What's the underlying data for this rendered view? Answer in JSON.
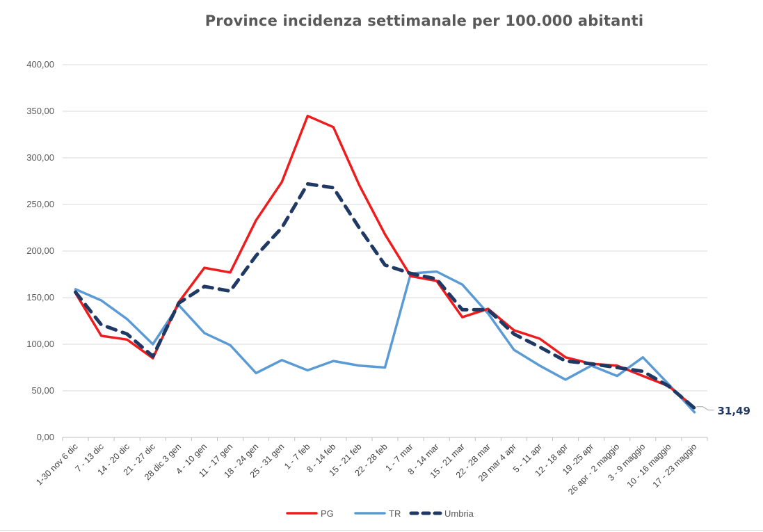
{
  "chart_data": {
    "type": "line",
    "title": "Province incidenza settimanale per 100.000 abitanti",
    "categories": [
      "1-30 nov 6 dic",
      "7 - 13 dic",
      "14 - 20 dic",
      "21 - 27 dic",
      "28 dic 3 gen",
      "4 - 10 gen",
      "11 - 17 gen",
      "18 - 24 gen",
      "25 - 31 gen",
      "1 - 7 feb",
      "8 - 14 feb",
      "15 - 21 feb",
      "22 - 28 feb",
      "1 - 7 mar",
      "8 - 14 mar",
      "15 - 21 mar",
      "22 - 28 mar",
      "29 mar 4 apr",
      "5 - 11 apr",
      "12 - 18 apr",
      "19 -25 apr",
      "26 apr - 2 maggio",
      "3 - 9 maggio",
      "10 - 16 maggio",
      "17 - 23 maggio"
    ],
    "series": [
      {
        "name": "PG",
        "color": "#ee1c1c",
        "style": "solid",
        "values": [
          155,
          109,
          105,
          85,
          145,
          182,
          177,
          233,
          274,
          345,
          333,
          271,
          218,
          173,
          168,
          129,
          138,
          115,
          106,
          86,
          79,
          77,
          66,
          55,
          32
        ]
      },
      {
        "name": "TR",
        "color": "#5b9bd5",
        "style": "solid",
        "values": [
          159,
          147,
          127,
          100,
          142,
          112,
          99,
          69,
          83,
          72,
          82,
          77,
          75,
          176,
          178,
          164,
          133,
          94,
          77,
          62,
          77,
          66,
          86,
          57,
          27
        ]
      },
      {
        "name": "Umbria",
        "color": "#1f3864",
        "style": "dashed",
        "values": [
          156,
          121,
          111,
          87,
          144,
          162,
          157,
          195,
          225,
          272,
          268,
          225,
          185,
          176,
          170,
          137,
          137,
          111,
          97,
          82,
          79,
          75,
          71,
          55,
          31.49
        ]
      }
    ],
    "ylim": [
      0,
      400
    ],
    "yticks": [
      "0,00",
      "50,00",
      "100,00",
      "150,00",
      "200,00",
      "250,00",
      "300,00",
      "350,00",
      "400,00"
    ],
    "ytick_values": [
      0,
      50,
      100,
      150,
      200,
      250,
      300,
      350,
      400
    ],
    "grid": true,
    "legend_position": "bottom",
    "annotation": {
      "text": "31,49",
      "series": "Umbria",
      "index": 24
    }
  }
}
